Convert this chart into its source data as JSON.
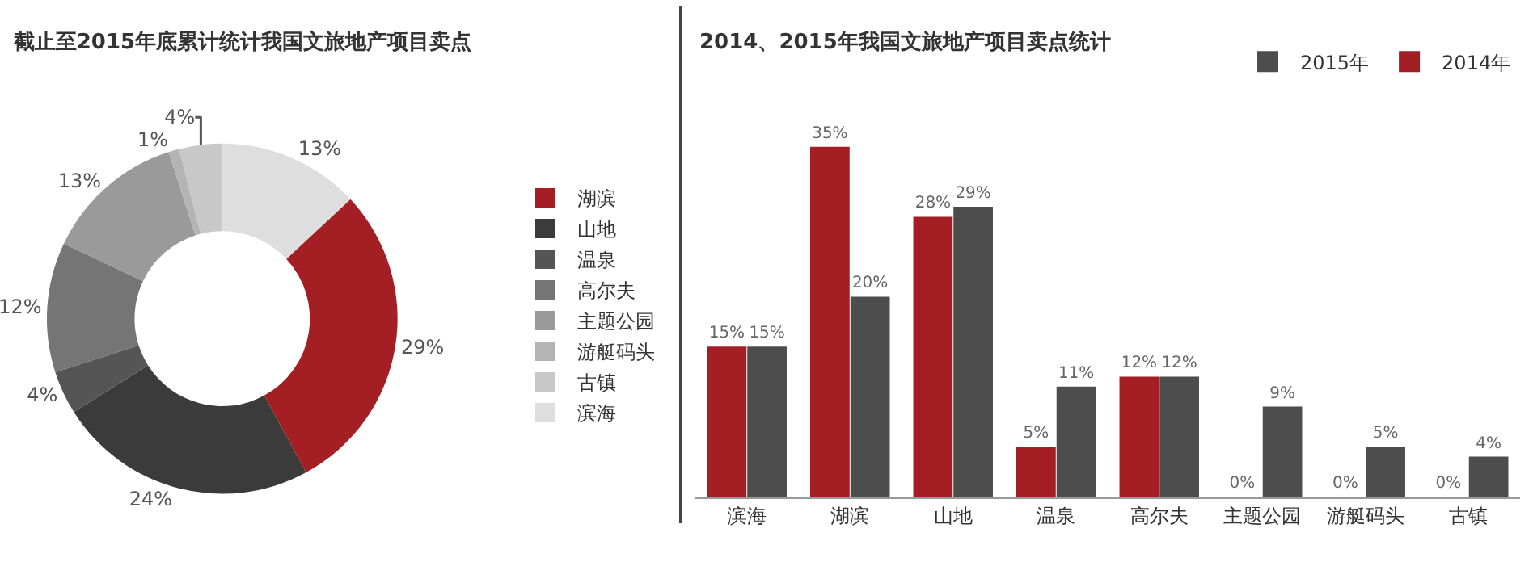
{
  "chart_data": [
    {
      "type": "donut",
      "title": "截止至2015年底累计统计我国文旅地产项目卖点",
      "categories": [
        "湖滨",
        "山地",
        "温泉",
        "高尔夫",
        "主题公园",
        "游艇码头",
        "古镇",
        "滨海"
      ],
      "values": [
        29,
        24,
        4,
        12,
        13,
        1,
        4,
        13
      ],
      "colors": [
        "#a31f24",
        "#3b3b3b",
        "#555555",
        "#757575",
        "#9a9a9a",
        "#b4b4b4",
        "#c8c8c8",
        "#dedede"
      ],
      "value_labels": [
        "29%",
        "24%",
        "4%",
        "12%",
        "13%",
        "1%",
        "4%",
        "13%"
      ],
      "legend": "right"
    },
    {
      "type": "bar",
      "title": "2014、2015年我国文旅地产项目卖点统计",
      "categories": [
        "滨海",
        "湖滨",
        "山地",
        "温泉",
        "高尔夫",
        "主题公园",
        "游艇码头",
        "古镇"
      ],
      "series": [
        {
          "name": "2014年",
          "color": "#a31f24",
          "values": [
            15,
            35,
            28,
            5,
            12,
            0,
            0,
            0
          ],
          "value_labels": [
            "15%",
            "35%",
            "28%",
            "5%",
            "12%",
            "0%",
            "0%",
            "0%"
          ]
        },
        {
          "name": "2015年",
          "color": "#4d4d4d",
          "values": [
            15,
            20,
            29,
            11,
            12,
            9,
            5,
            4
          ],
          "value_labels": [
            "15%",
            "20%",
            "29%",
            "11%",
            "12%",
            "9%",
            "5%",
            "4%"
          ]
        }
      ],
      "legend": "top right",
      "tick_labels": "x",
      "grid": false
    }
  ]
}
